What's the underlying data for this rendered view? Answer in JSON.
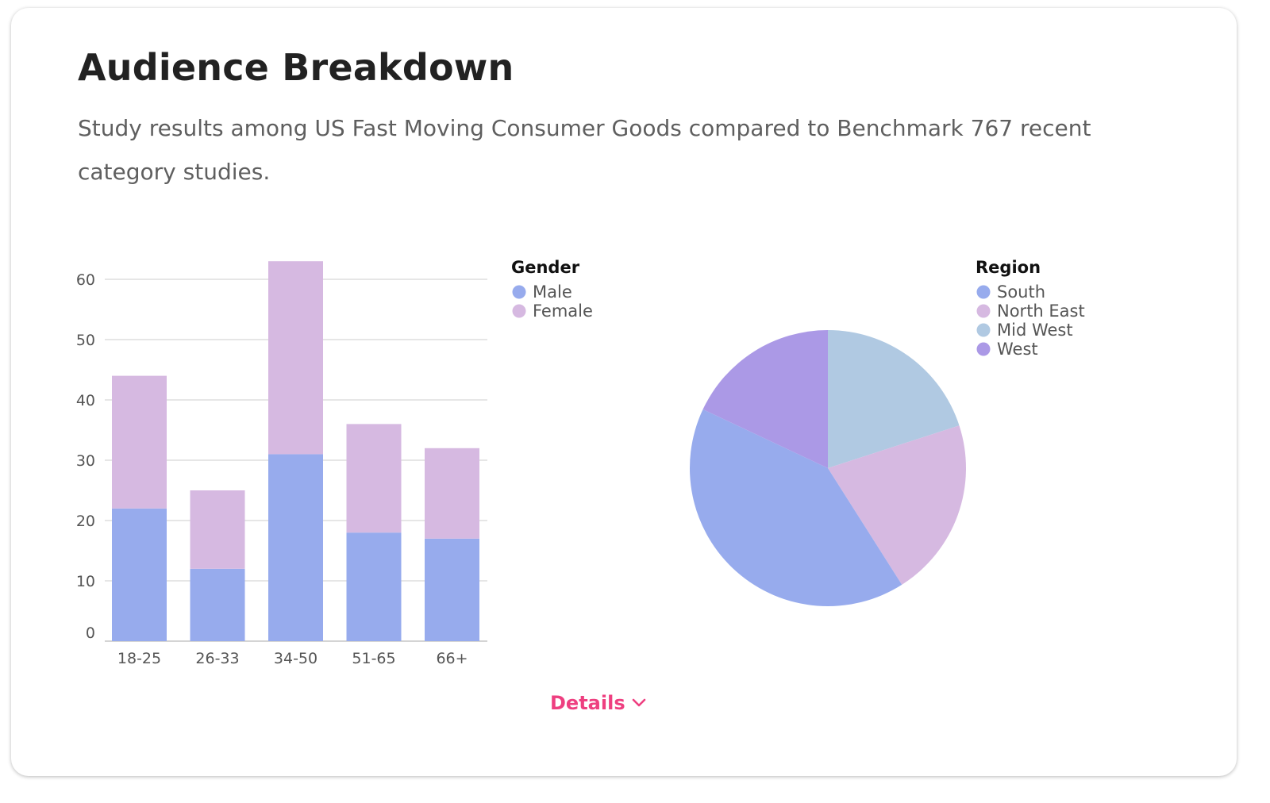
{
  "header": {
    "title": "Audience Breakdown",
    "subtitle": "Study results among US Fast Moving Consumer Goods compared to Benchmark 767 recent category studies."
  },
  "details_link": {
    "label": "Details",
    "icon": "chevron-down-icon",
    "color": "#ee3f80"
  },
  "chart_data": [
    {
      "type": "bar",
      "stacked": true,
      "categories": [
        "18-25",
        "26-33",
        "34-50",
        "51-65",
        "66+"
      ],
      "series": [
        {
          "name": "Male",
          "values": [
            22,
            12,
            31,
            18,
            17
          ],
          "color": "#97abed"
        },
        {
          "name": "Female",
          "values": [
            22,
            13,
            32,
            18,
            15
          ],
          "color": "#d6b9e1"
        }
      ],
      "yticks": [
        0,
        10,
        20,
        30,
        40,
        50,
        60
      ],
      "ylim": [
        0,
        60
      ],
      "grid": true,
      "legend": {
        "title": "Gender",
        "placement": "right"
      }
    },
    {
      "type": "pie",
      "labels": [
        "South",
        "North East",
        "Mid West",
        "West"
      ],
      "values": [
        41,
        21,
        20,
        18
      ],
      "colors": [
        "#97abed",
        "#d6b9e1",
        "#b0c9e2",
        "#ab99e6"
      ],
      "legend": {
        "title": "Region",
        "placement": "top-right"
      }
    }
  ]
}
